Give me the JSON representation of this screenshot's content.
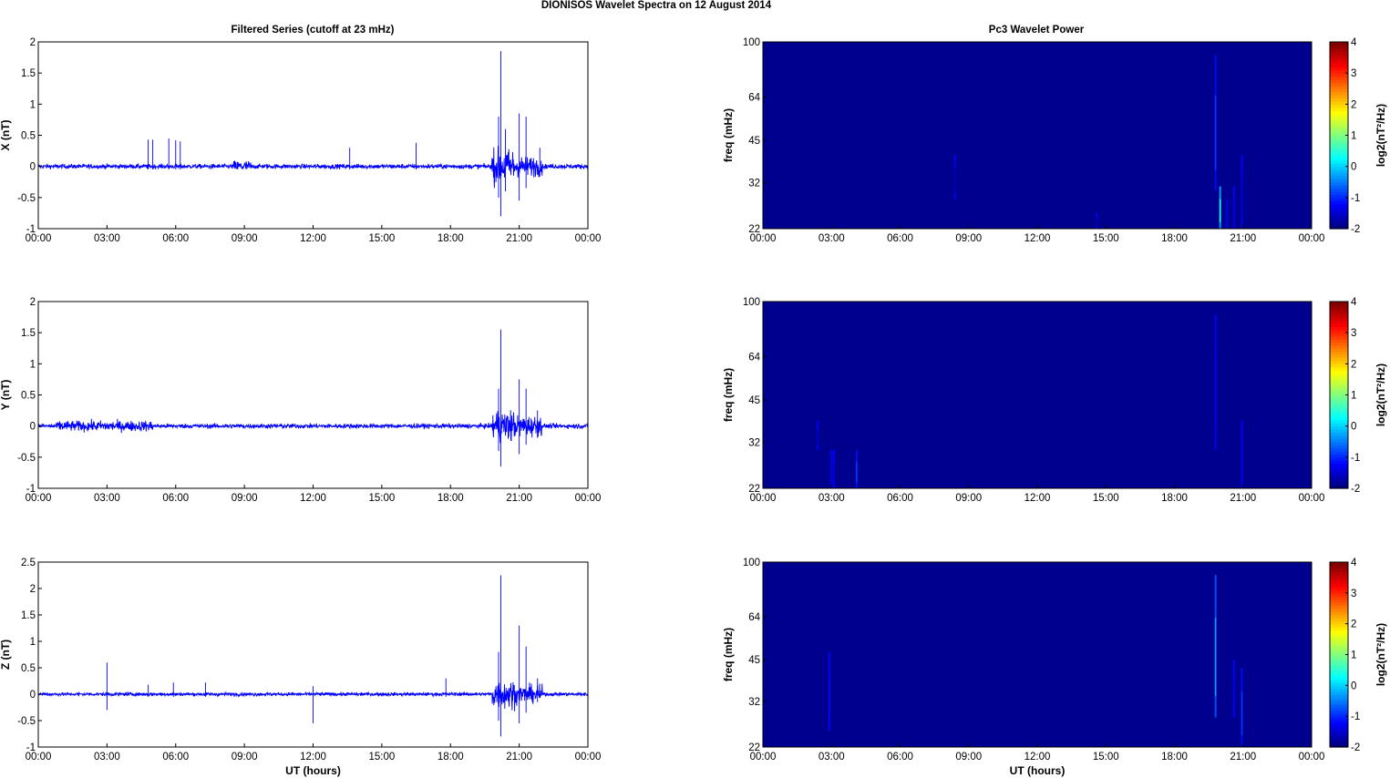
{
  "figure": {
    "title": "DIONISOS Wavelet Spectra on 12 August    2014",
    "left_column_title": "Filtered Series (cutoff at 23 mHz)",
    "right_column_title": "Pc3 Wavelet Power",
    "colors": {
      "trace": "#0000ff",
      "spectrum_background": "#00008f",
      "axes": "#000000"
    }
  },
  "chart_data": [
    {
      "type": "line",
      "panel": "x-series",
      "ylabel": "X (nT)",
      "xlabel": "",
      "x_ticks": [
        "00:00",
        "03:00",
        "06:00",
        "09:00",
        "12:00",
        "15:00",
        "18:00",
        "21:00",
        "00:00"
      ],
      "x_range_hours": [
        0,
        24
      ],
      "ylim": [
        -1,
        2
      ],
      "y_ticks": [
        "2",
        "1.5",
        "1",
        "0.5",
        "0",
        "-0.5",
        "-1"
      ],
      "series": [
        {
          "baseline_noise_nT": 0.04,
          "activity_windows": [
            {
              "start_h": 8.5,
              "end_h": 9.3,
              "amp_nT": 0.1
            },
            {
              "start_h": 19.8,
              "end_h": 20.8,
              "amp_nT": 0.3
            },
            {
              "start_h": 20.8,
              "end_h": 22.0,
              "amp_nT": 0.18
            }
          ],
          "spikes": [
            {
              "t_h": 4.8,
              "high": 0.43,
              "low": -0.05
            },
            {
              "t_h": 5.0,
              "high": 0.43,
              "low": -0.05
            },
            {
              "t_h": 5.7,
              "high": 0.45,
              "low": -0.05
            },
            {
              "t_h": 6.0,
              "high": 0.42,
              "low": -0.05
            },
            {
              "t_h": 6.2,
              "high": 0.4,
              "low": -0.05
            },
            {
              "t_h": 13.6,
              "high": 0.3,
              "low": -0.05
            },
            {
              "t_h": 16.5,
              "high": 0.38,
              "low": -0.05
            },
            {
              "t_h": 20.2,
              "high": 1.85,
              "low": -0.8
            },
            {
              "t_h": 20.1,
              "high": 0.8,
              "low": -0.5
            },
            {
              "t_h": 20.4,
              "high": 0.6,
              "low": -0.4
            },
            {
              "t_h": 21.0,
              "high": 0.85,
              "low": -0.55
            },
            {
              "t_h": 21.3,
              "high": 0.8,
              "low": -0.35
            },
            {
              "t_h": 21.9,
              "high": 0.3,
              "low": -0.15
            }
          ]
        }
      ]
    },
    {
      "type": "line",
      "panel": "y-series",
      "ylabel": "Y (nT)",
      "xlabel": "",
      "x_ticks": [
        "00:00",
        "03:00",
        "06:00",
        "09:00",
        "12:00",
        "15:00",
        "18:00",
        "21:00",
        "00:00"
      ],
      "x_range_hours": [
        0,
        24
      ],
      "ylim": [
        -1,
        2
      ],
      "y_ticks": [
        "2",
        "1.5",
        "1",
        "0.5",
        "0",
        "-0.5",
        "-1"
      ],
      "series": [
        {
          "baseline_noise_nT": 0.04,
          "activity_windows": [
            {
              "start_h": 0.8,
              "end_h": 5.0,
              "amp_nT": 0.09
            },
            {
              "start_h": 19.8,
              "end_h": 20.8,
              "amp_nT": 0.28
            },
            {
              "start_h": 20.8,
              "end_h": 22.0,
              "amp_nT": 0.18
            }
          ],
          "spikes": [
            {
              "t_h": 20.2,
              "high": 1.55,
              "low": -0.65
            },
            {
              "t_h": 20.1,
              "high": 0.6,
              "low": -0.4
            },
            {
              "t_h": 21.0,
              "high": 0.75,
              "low": -0.45
            },
            {
              "t_h": 21.3,
              "high": 0.6,
              "low": -0.3
            },
            {
              "t_h": 21.8,
              "high": 0.25,
              "low": -0.1
            }
          ]
        }
      ]
    },
    {
      "type": "line",
      "panel": "z-series",
      "ylabel": "Z (nT)",
      "xlabel": "UT (hours)",
      "x_ticks": [
        "00:00",
        "03:00",
        "06:00",
        "09:00",
        "12:00",
        "15:00",
        "18:00",
        "21:00",
        "00:00"
      ],
      "x_range_hours": [
        0,
        24
      ],
      "ylim": [
        -1,
        2.5
      ],
      "y_ticks": [
        "2.5",
        "2",
        "1.5",
        "1",
        "0.5",
        "0",
        "-0.5",
        "-1"
      ],
      "series": [
        {
          "baseline_noise_nT": 0.035,
          "activity_windows": [
            {
              "start_h": 19.8,
              "end_h": 20.8,
              "amp_nT": 0.3
            },
            {
              "start_h": 20.8,
              "end_h": 22.0,
              "amp_nT": 0.18
            }
          ],
          "spikes": [
            {
              "t_h": 3.0,
              "high": 0.6,
              "low": -0.3
            },
            {
              "t_h": 4.8,
              "high": 0.18,
              "low": -0.05
            },
            {
              "t_h": 5.9,
              "high": 0.22,
              "low": -0.05
            },
            {
              "t_h": 7.3,
              "high": 0.22,
              "low": -0.05
            },
            {
              "t_h": 12.0,
              "high": 0.15,
              "low": -0.55
            },
            {
              "t_h": 17.8,
              "high": 0.3,
              "low": -0.05
            },
            {
              "t_h": 20.2,
              "high": 2.25,
              "low": -0.8
            },
            {
              "t_h": 20.1,
              "high": 0.8,
              "low": -0.5
            },
            {
              "t_h": 21.0,
              "high": 1.3,
              "low": -0.55
            },
            {
              "t_h": 21.3,
              "high": 0.9,
              "low": -0.35
            },
            {
              "t_h": 21.8,
              "high": 0.3,
              "low": -0.15
            }
          ]
        }
      ]
    },
    {
      "type": "heatmap",
      "panel": "x-spectrum",
      "ylabel": "freq (mHz)",
      "xlabel": "",
      "x_ticks": [
        "00:00",
        "03:00",
        "06:00",
        "09:00",
        "12:00",
        "15:00",
        "18:00",
        "21:00",
        "00:00"
      ],
      "x_range_hours": [
        0,
        24
      ],
      "y_scale": "log",
      "ylim_mHz": [
        22,
        100
      ],
      "y_ticks": [
        "100",
        "64",
        "45",
        "32",
        "22"
      ],
      "colorbar": {
        "label": "log2(nT²/Hz)",
        "range": [
          -2,
          4
        ],
        "ticks": [
          "4",
          "3",
          "2",
          "1",
          "0",
          "-1",
          "-2"
        ]
      },
      "background_value": -2,
      "features": [
        {
          "t_h": 8.4,
          "f_low": 28,
          "f_high": 40,
          "value": -1.85
        },
        {
          "t_h": 14.6,
          "f_low": 22,
          "f_high": 25,
          "value": -1.85
        },
        {
          "t_h": 19.8,
          "f_low": 30,
          "f_high": 90,
          "value": -0.9
        },
        {
          "t_h": 20.0,
          "f_low": 22,
          "f_high": 31,
          "value": 0.4
        },
        {
          "t_h": 20.3,
          "f_low": 22,
          "f_high": 28,
          "value": -1.3
        },
        {
          "t_h": 20.6,
          "f_low": 22,
          "f_high": 31,
          "value": -1.4
        },
        {
          "t_h": 20.95,
          "f_low": 22,
          "f_high": 40,
          "value": -1.5
        }
      ]
    },
    {
      "type": "heatmap",
      "panel": "y-spectrum",
      "ylabel": "freq (mHz)",
      "xlabel": "",
      "x_ticks": [
        "00:00",
        "03:00",
        "06:00",
        "09:00",
        "12:00",
        "15:00",
        "18:00",
        "21:00",
        "00:00"
      ],
      "x_range_hours": [
        0,
        24
      ],
      "y_scale": "log",
      "ylim_mHz": [
        22,
        100
      ],
      "y_ticks": [
        "100",
        "64",
        "45",
        "32",
        "22"
      ],
      "colorbar": {
        "label": "log2(nT²/Hz)",
        "range": [
          -2,
          4
        ],
        "ticks": [
          "4",
          "3",
          "2",
          "1",
          "0",
          "-1",
          "-2"
        ]
      },
      "background_value": -2,
      "features": [
        {
          "t_h": 2.4,
          "f_low": 30,
          "f_high": 38,
          "value": -1.7
        },
        {
          "t_h": 3.0,
          "f_low": 22,
          "f_high": 30,
          "value": -1.4
        },
        {
          "t_h": 3.1,
          "f_low": 22,
          "f_high": 30,
          "value": -1.5
        },
        {
          "t_h": 4.1,
          "f_low": 22,
          "f_high": 30,
          "value": -0.9
        },
        {
          "t_h": 19.8,
          "f_low": 30,
          "f_high": 90,
          "value": -1.3
        },
        {
          "t_h": 20.95,
          "f_low": 22,
          "f_high": 38,
          "value": -1.3
        }
      ]
    },
    {
      "type": "heatmap",
      "panel": "z-spectrum",
      "ylabel": "freq (mHz)",
      "xlabel": "UT (hours)",
      "x_ticks": [
        "00:00",
        "03:00",
        "06:00",
        "09:00",
        "12:00",
        "15:00",
        "18:00",
        "21:00",
        "00:00"
      ],
      "x_range_hours": [
        0,
        24
      ],
      "y_scale": "log",
      "ylim_mHz": [
        22,
        100
      ],
      "y_ticks": [
        "100",
        "64",
        "45",
        "32",
        "22"
      ],
      "colorbar": {
        "label": "log2(nT²/Hz)",
        "range": [
          -2,
          4
        ],
        "ticks": [
          "4",
          "3",
          "2",
          "1",
          "0",
          "-1",
          "-2"
        ]
      },
      "background_value": -2,
      "features": [
        {
          "t_h": 2.9,
          "f_low": 25,
          "f_high": 48,
          "value": -1.2
        },
        {
          "t_h": 19.8,
          "f_low": 28,
          "f_high": 90,
          "value": -0.3
        },
        {
          "t_h": 20.6,
          "f_low": 28,
          "f_high": 45,
          "value": -1.3
        },
        {
          "t_h": 20.95,
          "f_low": 22,
          "f_high": 42,
          "value": -0.9
        }
      ]
    }
  ]
}
